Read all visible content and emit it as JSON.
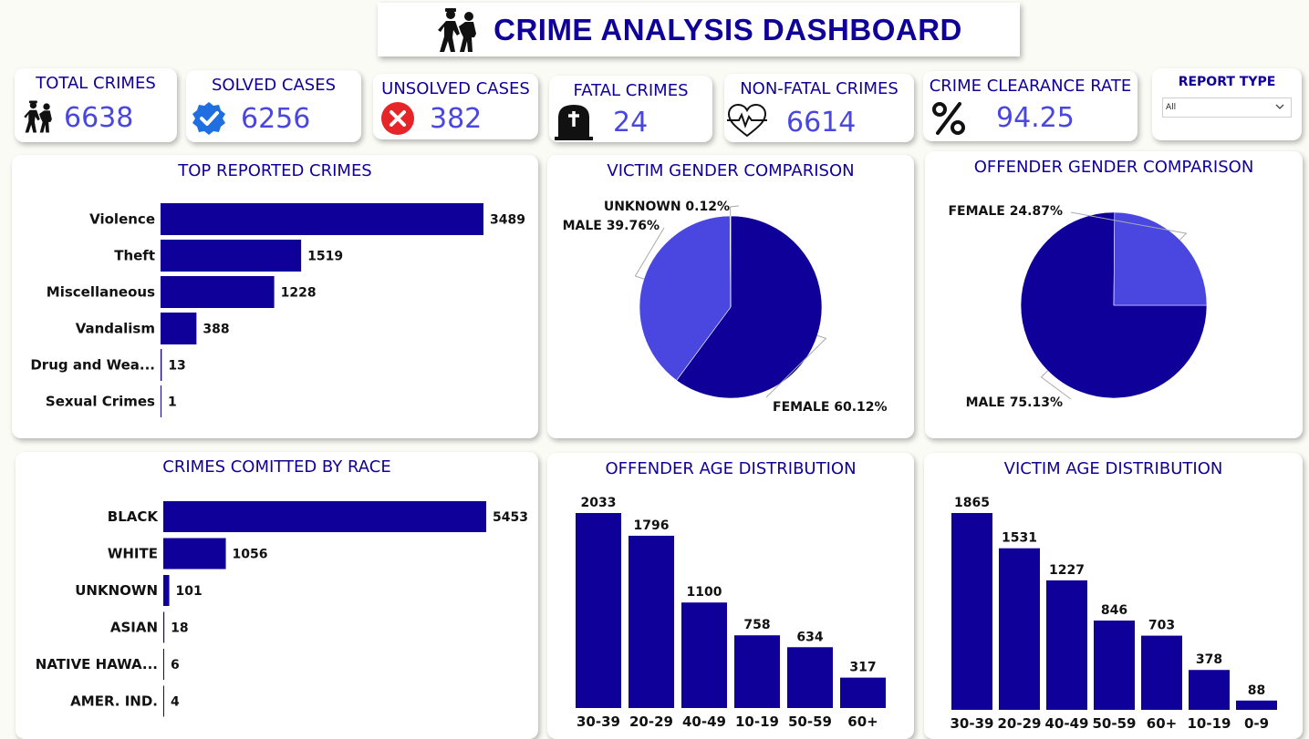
{
  "header": {
    "title": "CRIME ANALYSIS DASHBOARD",
    "icon": "police-arrest-icon"
  },
  "kpis": [
    {
      "label": "TOTAL CRIMES",
      "value": "6638",
      "icon": "police-arrest-icon"
    },
    {
      "label": "SOLVED CASES",
      "value": "6256",
      "icon": "verified-check-icon"
    },
    {
      "label": "UNSOLVED CASES",
      "value": "382",
      "icon": "x-circle-icon"
    },
    {
      "label": "FATAL CRIMES",
      "value": "24",
      "icon": "tombstone-icon"
    },
    {
      "label": "NON-FATAL CRIMES",
      "value": "6614",
      "icon": "heartbeat-icon"
    },
    {
      "label": "CRIME CLEARANCE RATE",
      "value": "94.25",
      "icon": "percent-icon"
    }
  ],
  "slicer": {
    "label": "REPORT TYPE",
    "selected": "All"
  },
  "colors": {
    "dark": "#10009a",
    "light": "#4a47e0",
    "title": "#10009a"
  },
  "chart_data": [
    {
      "id": "top-crimes",
      "type": "bar",
      "orientation": "horizontal",
      "title": "TOP REPORTED CRIMES",
      "categories": [
        "Violence",
        "Theft",
        "Miscellaneous",
        "Vandalism",
        "Drug and Wea...",
        "Sexual Crimes"
      ],
      "values": [
        3489,
        1519,
        1228,
        388,
        13,
        1
      ]
    },
    {
      "id": "victim-gender",
      "type": "pie",
      "title": "VICTIM GENDER COMPARISON",
      "slices": [
        {
          "label": "FEMALE",
          "value": 60.12,
          "display": "FEMALE 60.12%"
        },
        {
          "label": "MALE",
          "value": 39.76,
          "display": "MALE 39.76%"
        },
        {
          "label": "UNKNOWN",
          "value": 0.12,
          "display": "UNKNOWN 0.12%"
        }
      ]
    },
    {
      "id": "offender-gender",
      "type": "pie",
      "title": "OFFENDER GENDER COMPARISON",
      "slices": [
        {
          "label": "MALE",
          "value": 75.13,
          "display": "MALE 75.13%"
        },
        {
          "label": "FEMALE",
          "value": 24.87,
          "display": "FEMALE 24.87%"
        }
      ]
    },
    {
      "id": "race",
      "type": "bar",
      "orientation": "horizontal",
      "title": "CRIMES COMITTED BY RACE",
      "categories": [
        "BLACK",
        "WHITE",
        "UNKNOWN",
        "ASIAN",
        "NATIVE HAWA...",
        "AMER. IND."
      ],
      "values": [
        5453,
        1056,
        101,
        18,
        6,
        4
      ]
    },
    {
      "id": "offender-age",
      "type": "bar",
      "orientation": "vertical",
      "title": "OFFENDER AGE DISTRIBUTION",
      "categories": [
        "30-39",
        "20-29",
        "40-49",
        "10-19",
        "50-59",
        "60+"
      ],
      "values": [
        2033,
        1796,
        1100,
        758,
        634,
        317
      ]
    },
    {
      "id": "victim-age",
      "type": "bar",
      "orientation": "vertical",
      "title": "VICTIM AGE DISTRIBUTION",
      "categories": [
        "30-39",
        "20-29",
        "40-49",
        "50-59",
        "60+",
        "10-19",
        "0-9"
      ],
      "values": [
        1865,
        1531,
        1227,
        846,
        703,
        378,
        88
      ]
    }
  ]
}
